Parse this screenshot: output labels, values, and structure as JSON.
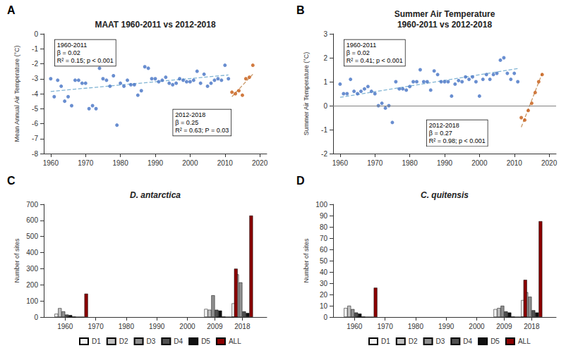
{
  "chart_data": [
    {
      "type": "scatter",
      "title": "MAAT 1960-2011 vs 2012-2018",
      "panel_label": "A",
      "ylabel": "Mean Annual Air Temperature (°C)",
      "xlim": [
        1958,
        2022
      ],
      "xticks": [
        1960,
        1970,
        1980,
        1990,
        2000,
        2010,
        2020
      ],
      "ylim": [
        -8,
        0
      ],
      "yticks": [
        0,
        -1,
        -2,
        -3,
        -4,
        -5,
        -6,
        -7,
        -8
      ],
      "grid": false,
      "series": [
        {
          "type": "scatter",
          "color": "#4472C4",
          "x": [
            1960,
            1961,
            1962,
            1963,
            1964,
            1965,
            1966,
            1967,
            1968,
            1969,
            1970,
            1971,
            1972,
            1973,
            1974,
            1975,
            1976,
            1977,
            1978,
            1979,
            1980,
            1981,
            1982,
            1983,
            1984,
            1985,
            1986,
            1987,
            1988,
            1989,
            1990,
            1991,
            1992,
            1993,
            1994,
            1995,
            1996,
            1997,
            1998,
            1999,
            2000,
            2001,
            2002,
            2003,
            2004,
            2005,
            2006,
            2007,
            2008,
            2009,
            2010,
            2011
          ],
          "values": [
            -3.0,
            -4.2,
            -3.1,
            -3.5,
            -4.5,
            -4.2,
            -4.8,
            -3.1,
            -3.1,
            -3.3,
            -3.3,
            -5.0,
            -4.8,
            -5.0,
            -2.3,
            -3.0,
            -3.1,
            -3.5,
            -2.8,
            -6.1,
            -3.3,
            -3.5,
            -3.1,
            -3.4,
            -3.4,
            -4.1,
            -3.8,
            -2.2,
            -2.3,
            -3.0,
            -3.0,
            -3.2,
            -3.1,
            -2.9,
            -3.3,
            -3.4,
            -3.3,
            -3.0,
            -3.1,
            -3.2,
            -3.2,
            -3.1,
            -2.5,
            -3.3,
            -2.7,
            -3.5,
            -3.3,
            -3.1,
            -3.0,
            -3.1,
            -2.1,
            -3.0
          ]
        },
        {
          "type": "scatter",
          "color": "#C55A11",
          "x": [
            2012,
            2013,
            2014,
            2015,
            2016,
            2017,
            2018
          ],
          "values": [
            -3.9,
            -4.0,
            -3.8,
            -4.1,
            -3.0,
            -2.9,
            -2.1
          ]
        },
        {
          "type": "line",
          "line_style": "dashed",
          "color": "#7FB3D3",
          "x": [
            1960,
            2011
          ],
          "values": [
            -3.85,
            -2.75
          ]
        },
        {
          "type": "line",
          "line_style": "dashed",
          "color": "#C99A6B",
          "x": [
            2012,
            2018
          ],
          "values": [
            -4.2,
            -2.7
          ]
        }
      ],
      "annotations": [
        "1960-2011\nβ = 0.02\nR² = 0.15; p < 0.001",
        "2012-2018\nβ = 0.25\nR² = 0.63; P = 0.03"
      ]
    },
    {
      "type": "scatter",
      "title": "Summer Air Temperature\n1960-2011 vs 2012-2018",
      "panel_label": "B",
      "ylabel": "Summer Air Temperature (°C)",
      "xlim": [
        1958,
        2022
      ],
      "xticks": [
        1960,
        1970,
        1980,
        1990,
        2000,
        2010,
        2020
      ],
      "ylim": [
        -2,
        3
      ],
      "yticks": [
        -2,
        -1,
        0,
        1,
        2,
        3
      ],
      "grid": false,
      "hline": 0,
      "series": [
        {
          "type": "scatter",
          "color": "#4472C4",
          "x": [
            1960,
            1961,
            1962,
            1963,
            1964,
            1965,
            1966,
            1967,
            1968,
            1969,
            1970,
            1971,
            1972,
            1973,
            1974,
            1975,
            1976,
            1977,
            1978,
            1979,
            1980,
            1981,
            1982,
            1983,
            1984,
            1985,
            1986,
            1987,
            1988,
            1989,
            1990,
            1991,
            1992,
            1993,
            1994,
            1995,
            1996,
            1997,
            1998,
            1999,
            2000,
            2001,
            2002,
            2003,
            2004,
            2005,
            2006,
            2007,
            2008,
            2009,
            2010,
            2011
          ],
          "values": [
            0.9,
            0.5,
            0.5,
            1.1,
            0.6,
            0.5,
            0.6,
            0.7,
            0.8,
            0.6,
            0.5,
            0.0,
            0.1,
            -0.1,
            0.0,
            -0.7,
            1.0,
            0.7,
            0.7,
            0.65,
            0.8,
            1.0,
            1.0,
            1.5,
            1.0,
            1.0,
            0.65,
            1.45,
            1.3,
            1.0,
            1.0,
            1.0,
            0.4,
            0.9,
            1.05,
            1.0,
            1.2,
            1.1,
            1.2,
            1.0,
            0.4,
            1.1,
            1.3,
            1.1,
            1.3,
            1.35,
            1.9,
            2.0,
            1.35,
            1.1,
            1.35,
            1.0
          ]
        },
        {
          "type": "scatter",
          "color": "#C55A11",
          "x": [
            2012,
            2013,
            2014,
            2015,
            2016,
            2017,
            2018
          ],
          "values": [
            -0.5,
            -0.6,
            -0.2,
            0.1,
            0.55,
            1.0,
            1.3
          ]
        },
        {
          "type": "line",
          "line_style": "dashed",
          "color": "#7FB3D3",
          "x": [
            1960,
            2011
          ],
          "values": [
            0.35,
            1.55
          ]
        },
        {
          "type": "line",
          "line_style": "dashed",
          "color": "#C99A6B",
          "x": [
            2012,
            2018
          ],
          "values": [
            -0.9,
            1.35
          ]
        }
      ],
      "annotations": [
        "1960-2011\nβ = 0.02\nR² = 0.41; p < 0.001",
        "2012-2018\nβ = 0.27\nR² = 0.98; p < 0.001"
      ]
    },
    {
      "type": "bar",
      "title": "D. antarctica",
      "panel_label": "C",
      "ylabel": "Number of sites",
      "xlim": [
        1953,
        2026
      ],
      "xticks": [
        1960,
        1970,
        1980,
        1990,
        2000,
        2009,
        2018
      ],
      "ylim": [
        0,
        700
      ],
      "yticks": [
        0,
        100,
        200,
        300,
        400,
        500,
        600,
        700
      ],
      "grid": false,
      "legend": "bottom",
      "x": [
        1960,
        1964,
        2009,
        2013,
        2018
      ],
      "series": [
        {
          "name": "D1",
          "color": "#f2f2f2",
          "values": [
            20,
            0,
            50,
            0,
            85
          ]
        },
        {
          "name": "D2",
          "color": "#C0C0C0",
          "values": [
            55,
            0,
            45,
            0,
            265
          ]
        },
        {
          "name": "D3",
          "color": "#909090",
          "values": [
            35,
            0,
            135,
            0,
            215
          ]
        },
        {
          "name": "D4",
          "color": "#505050",
          "values": [
            15,
            0,
            45,
            0,
            35
          ]
        },
        {
          "name": "D5",
          "color": "#101010",
          "values": [
            12,
            0,
            40,
            0,
            25
          ]
        },
        {
          "name": "ALL",
          "color": "#8B0000",
          "values": [
            0,
            145,
            0,
            300,
            630
          ]
        }
      ]
    },
    {
      "type": "bar",
      "title": "C. quitensis",
      "panel_label": "D",
      "ylabel": "Number of sites",
      "xlim": [
        1953,
        2026
      ],
      "xticks": [
        1960,
        1970,
        1980,
        1990,
        2000,
        2009,
        2018
      ],
      "ylim": [
        0,
        100
      ],
      "yticks": [
        0,
        10,
        20,
        30,
        40,
        50,
        60,
        70,
        80,
        90,
        100
      ],
      "grid": false,
      "legend": "bottom",
      "x": [
        1960,
        1964,
        2009,
        2013,
        2018
      ],
      "series": [
        {
          "name": "D1",
          "color": "#f2f2f2",
          "values": [
            8,
            0,
            7,
            0,
            15
          ]
        },
        {
          "name": "D2",
          "color": "#C0C0C0",
          "values": [
            10,
            0,
            8,
            0,
            22
          ]
        },
        {
          "name": "D3",
          "color": "#909090",
          "values": [
            7,
            0,
            10,
            0,
            18
          ]
        },
        {
          "name": "D4",
          "color": "#505050",
          "values": [
            4,
            0,
            5,
            0,
            6
          ]
        },
        {
          "name": "D5",
          "color": "#101010",
          "values": [
            3,
            0,
            4,
            0,
            4
          ]
        },
        {
          "name": "ALL",
          "color": "#8B0000",
          "values": [
            0,
            26,
            0,
            33,
            85
          ]
        }
      ]
    }
  ]
}
